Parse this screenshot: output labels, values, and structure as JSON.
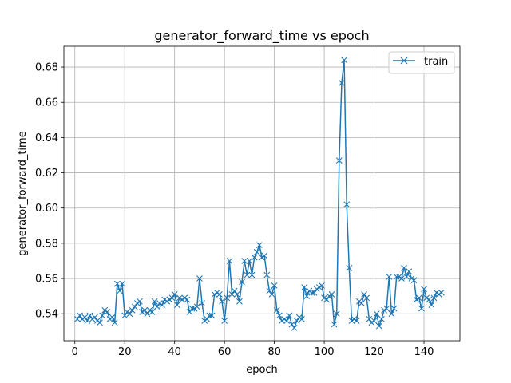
{
  "chart_data": {
    "type": "line",
    "title": "generator_forward_time vs epoch",
    "xlabel": "epoch",
    "ylabel": "generator_forward_time",
    "xlim": [
      -4.4,
      154.4
    ],
    "ylim": [
      0.5247,
      0.6918
    ],
    "xticks": [
      0,
      20,
      40,
      60,
      80,
      100,
      120,
      140
    ],
    "yticks": [
      0.54,
      0.56,
      0.58,
      0.6,
      0.62,
      0.64,
      0.66,
      0.68
    ],
    "grid": true,
    "legend": {
      "placement": "top-right"
    },
    "series": [
      {
        "name": "train",
        "color": "#1f77b4",
        "marker": "x",
        "x": [
          1,
          2,
          3,
          4,
          5,
          6,
          7,
          8,
          9,
          10,
          11,
          12,
          13,
          14,
          15,
          16,
          17,
          18,
          19,
          20,
          21,
          22,
          23,
          24,
          25,
          26,
          27,
          28,
          29,
          30,
          31,
          32,
          33,
          34,
          35,
          36,
          37,
          38,
          39,
          40,
          41,
          42,
          43,
          44,
          45,
          46,
          47,
          48,
          49,
          50,
          51,
          52,
          53,
          54,
          55,
          56,
          57,
          58,
          59,
          60,
          61,
          62,
          63,
          64,
          65,
          66,
          67,
          68,
          69,
          70,
          71,
          72,
          73,
          74,
          75,
          76,
          77,
          78,
          79,
          80,
          81,
          82,
          83,
          84,
          85,
          86,
          87,
          88,
          89,
          90,
          91,
          92,
          93,
          94,
          95,
          96,
          97,
          98,
          99,
          100,
          101,
          102,
          103,
          104,
          105,
          106,
          107,
          108,
          109,
          110,
          111,
          112,
          113,
          114,
          115,
          116,
          117,
          118,
          119,
          120,
          121,
          122,
          123,
          124,
          125,
          126,
          127,
          128,
          129,
          130,
          131,
          132,
          133,
          134,
          135,
          136,
          137,
          138,
          139,
          140,
          141,
          142,
          143,
          144,
          145,
          146,
          147
        ],
        "y": [
          0.537,
          0.539,
          0.537,
          0.538,
          0.536,
          0.539,
          0.537,
          0.538,
          0.536,
          0.535,
          0.539,
          0.542,
          0.541,
          0.537,
          0.538,
          0.535,
          0.557,
          0.553,
          0.557,
          0.539,
          0.541,
          0.54,
          0.542,
          0.544,
          0.546,
          0.547,
          0.541,
          0.542,
          0.54,
          0.542,
          0.541,
          0.547,
          0.544,
          0.546,
          0.545,
          0.548,
          0.547,
          0.548,
          0.549,
          0.551,
          0.545,
          0.549,
          0.548,
          0.549,
          0.548,
          0.541,
          0.543,
          0.543,
          0.544,
          0.56,
          0.546,
          0.536,
          0.537,
          0.539,
          0.539,
          0.551,
          0.552,
          0.551,
          0.547,
          0.536,
          0.549,
          0.57,
          0.551,
          0.553,
          0.551,
          0.547,
          0.558,
          0.57,
          0.562,
          0.57,
          0.562,
          0.572,
          0.575,
          0.579,
          0.572,
          0.573,
          0.562,
          0.553,
          0.551,
          0.556,
          0.542,
          0.539,
          0.536,
          0.537,
          0.536,
          0.539,
          0.534,
          0.532,
          0.536,
          0.538,
          0.537,
          0.555,
          0.55,
          0.553,
          0.552,
          0.552,
          0.554,
          0.555,
          0.556,
          0.549,
          0.548,
          0.55,
          0.551,
          0.534,
          0.54,
          0.627,
          0.671,
          0.684,
          0.602,
          0.566,
          0.536,
          0.537,
          0.536,
          0.547,
          0.546,
          0.551,
          0.549,
          0.537,
          0.535,
          0.536,
          0.54,
          0.533,
          0.537,
          0.542,
          0.543,
          0.561,
          0.54,
          0.543,
          0.561,
          0.561,
          0.56,
          0.566,
          0.561,
          0.564,
          0.56,
          0.559,
          0.548,
          0.549,
          0.543,
          0.554,
          0.549,
          0.548,
          0.545,
          0.549,
          0.552,
          0.551,
          0.552
        ]
      }
    ]
  }
}
